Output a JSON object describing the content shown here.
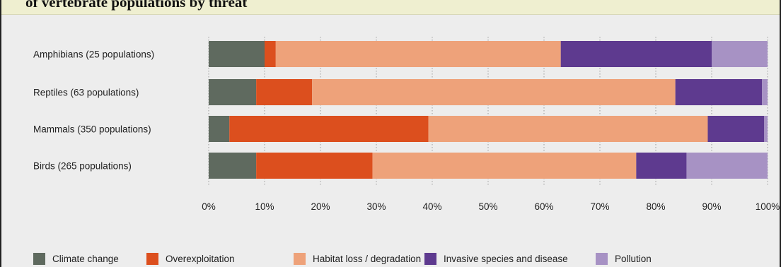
{
  "title_fragment": "of vertebrate  populations by threat",
  "colors": {
    "background": "#ededed",
    "title_strip": "#efefd0"
  },
  "chart_data": {
    "type": "bar",
    "orientation": "horizontal",
    "stacked": true,
    "categories": [
      "Amphibians (25 populations)",
      "Reptiles (63 populations)",
      "Mammals (350 populations)",
      "Birds (265 populations)"
    ],
    "series": [
      {
        "name": "Climate change",
        "color": "#5f6a5f",
        "values": [
          10,
          8.5,
          3.7,
          8.5
        ]
      },
      {
        "name": "Overexploitation",
        "color": "#dc4f1e",
        "values": [
          2,
          10,
          35.6,
          20.8
        ]
      },
      {
        "name": "Habitat loss / degradation",
        "color": "#eea27a",
        "values": [
          51,
          65,
          50,
          47.2
        ]
      },
      {
        "name": "Invasive species and disease",
        "color": "#5e3a8f",
        "values": [
          27,
          15.5,
          10.1,
          9
        ]
      },
      {
        "name": "Pollution",
        "color": "#a792c4",
        "values": [
          10,
          1,
          0.6,
          14.5
        ]
      }
    ],
    "xlim": [
      0,
      100
    ],
    "xticks": [
      "0%",
      "10%",
      "20%",
      "30%",
      "40%",
      "50%",
      "60%",
      "70%",
      "80%",
      "90%",
      "100%"
    ],
    "grid": "vertical dotted",
    "legend_position": "bottom"
  }
}
